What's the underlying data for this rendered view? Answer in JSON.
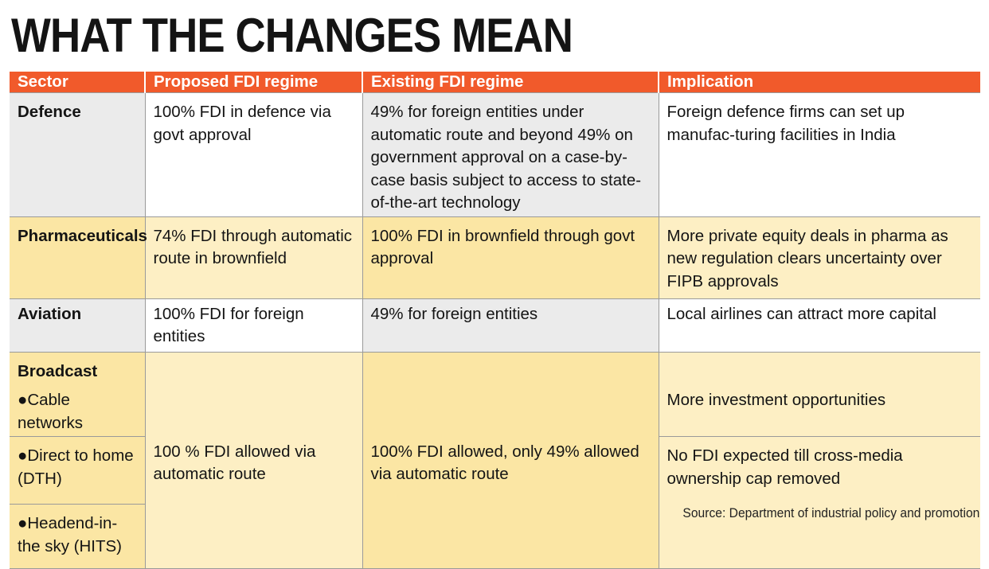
{
  "title": "WHAT THE CHANGES MEAN",
  "columns": [
    "Sector",
    "Proposed FDI regime",
    "Existing FDI regime",
    "Implication"
  ],
  "rows": [
    {
      "sector": "Defence",
      "proposed": "100% FDI in defence via govt approval",
      "existing": "49% for foreign entities under automatic route and beyond 49% on government approval on a case-by-case basis subject to access to state-of-the-art technology",
      "implication": "Foreign defence firms can set up manufac-turing facilities in India"
    },
    {
      "sector": "Pharmaceuticals",
      "proposed": "74% FDI through automatic route in brownfield",
      "existing": "100% FDI in brownfield through govt approval",
      "implication": "More private equity deals in pharma as new regulation clears uncertainty over FIPB approvals"
    },
    {
      "sector": "Aviation",
      "proposed": "100% FDI for foreign entities",
      "existing": "49% for foreign entities",
      "implication": "Local airlines can attract more capital"
    }
  ],
  "broadcast": {
    "sector": "Broadcast",
    "subsectors": [
      {
        "label": "●Cable networks",
        "implication": "More investment opportunities"
      },
      {
        "label": "●Direct to home (DTH)",
        "implication": "No FDI expected till cross-media ownership cap removed"
      },
      {
        "label": "●Headend-in-the sky (HITS)",
        "implication": ""
      }
    ],
    "proposed": "100 % FDI allowed via automatic route",
    "existing": "100% FDI allowed, only 49% allowed via automatic route"
  },
  "source": "Source: Department of industrial policy and promotion"
}
